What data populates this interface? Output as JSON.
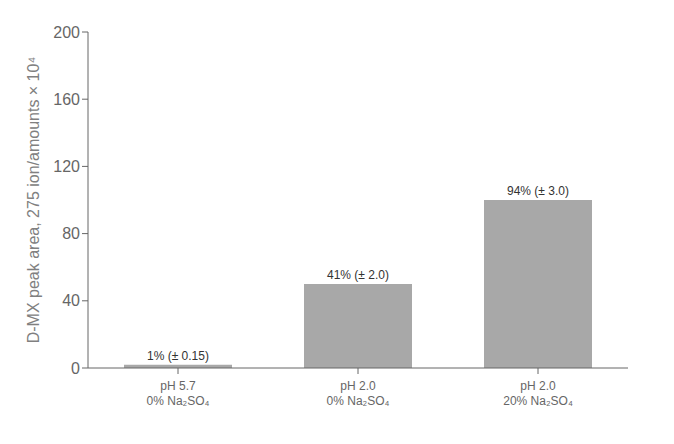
{
  "chart_data": {
    "type": "bar",
    "categories": [
      "pH 5.7\n0% Na₂SO₄",
      "pH 2.0\n0% Na₂SO₄",
      "pH 2.0\n20% Na₂SO₄"
    ],
    "values": [
      2.0,
      50.0,
      100.0
    ],
    "value_labels": [
      "1% (± 0.15)",
      "41% (± 2.0)",
      "94% (± 3.0)"
    ],
    "data_labels": true,
    "color": "#a8a8a8",
    "ylabel": "D-MX peak area, 275 ion/amounts × 10⁴",
    "ylim": [
      0,
      200
    ],
    "yticks": [
      0,
      40,
      80,
      120,
      160,
      200
    ],
    "grid": false
  }
}
